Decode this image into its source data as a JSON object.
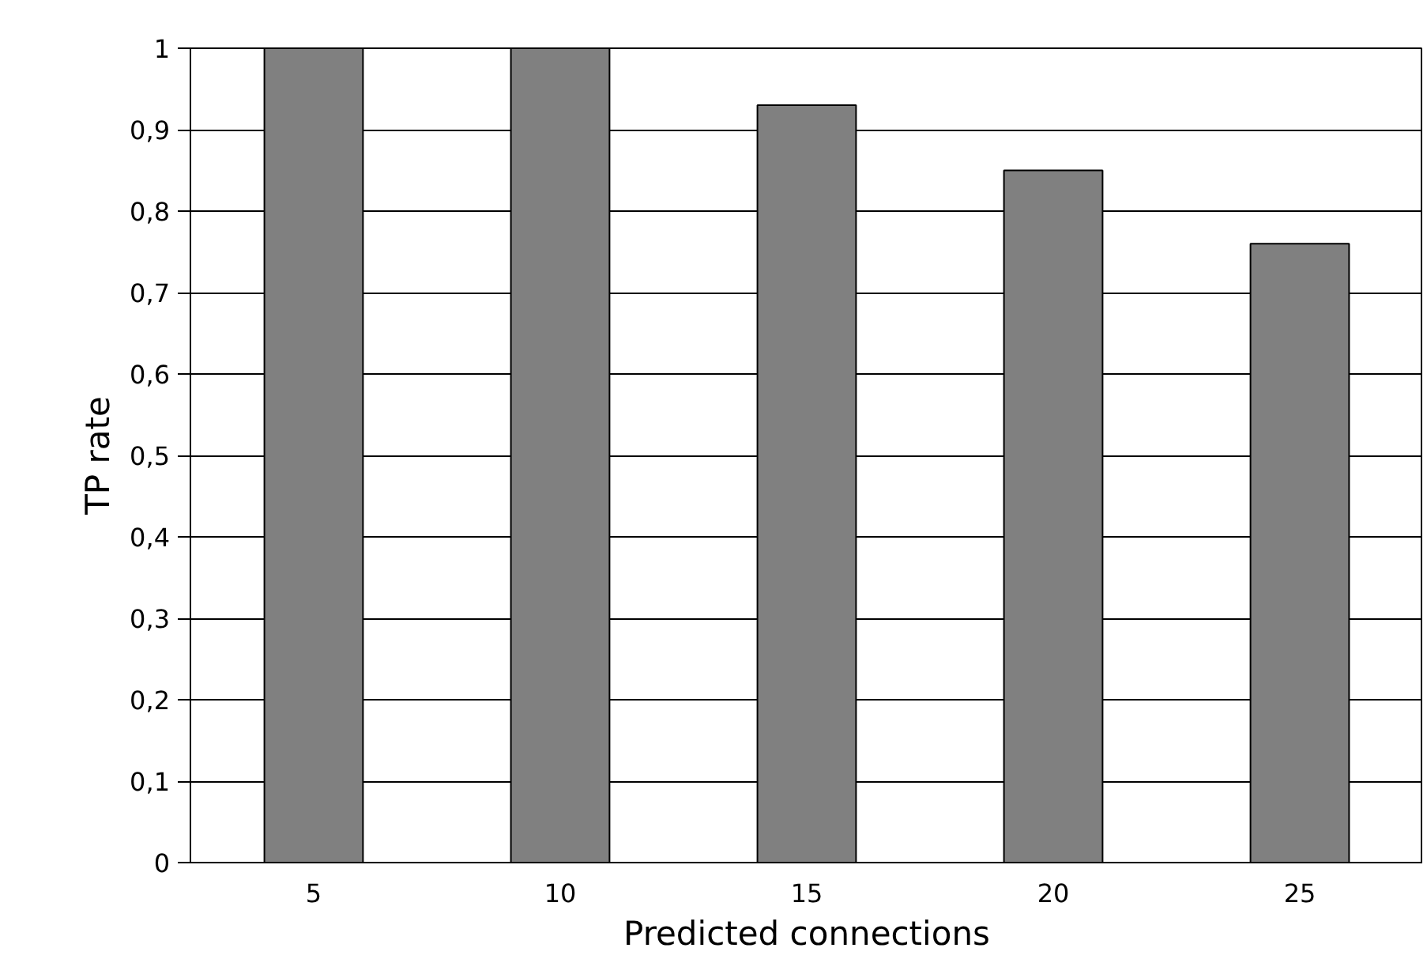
{
  "chart_data": {
    "type": "bar",
    "xlabel": "Predicted connections",
    "ylabel": "TP rate",
    "categories": [
      "5",
      "10",
      "15",
      "20",
      "25"
    ],
    "values": [
      1,
      1,
      0.93,
      0.85,
      0.76
    ],
    "color": "#808080",
    "ylim": [
      0,
      1
    ],
    "yticks": [
      0,
      {
        "value": 0.1,
        "label": "0,1"
      },
      {
        "value": 0.2,
        "label": "0,2"
      },
      {
        "value": 0.3,
        "label": "0,3"
      },
      {
        "value": 0.4,
        "label": "0,4"
      },
      {
        "value": 0.5,
        "label": "0,5"
      },
      {
        "value": 0.6,
        "label": "0,6"
      },
      {
        "value": 0.7,
        "label": "0,7"
      },
      {
        "value": 0.8,
        "label": "0,8"
      },
      {
        "value": 0.9,
        "label": "0,9"
      },
      1
    ],
    "grid": "y"
  }
}
